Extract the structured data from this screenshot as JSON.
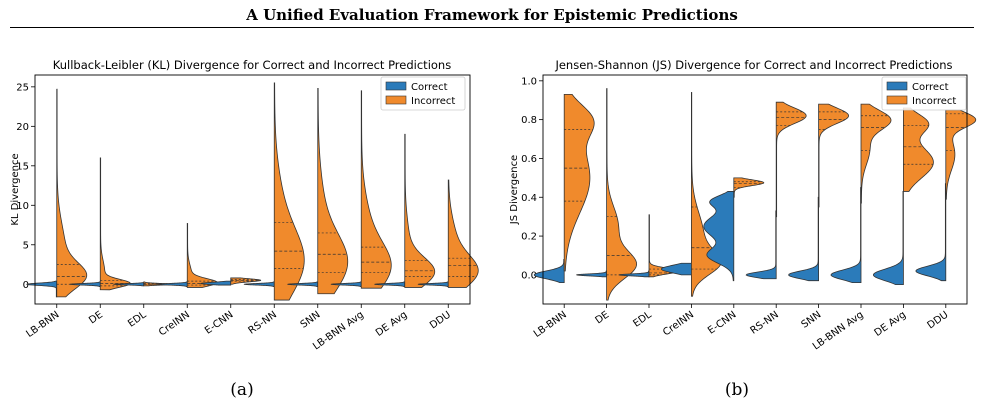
{
  "header": {
    "title": "A Unified Evaluation Framework for Epistemic Predictions"
  },
  "captions": [
    "(a)",
    "(b)"
  ],
  "colors": {
    "correct": "#2b7bba",
    "incorrect": "#f08a2c"
  },
  "chart_data": [
    {
      "type": "violin",
      "title": "Kullback-Leibler (KL) Divergence for Correct and Incorrect Predictions",
      "ylabel": "KL Divergence",
      "xlabel": "",
      "ylim": [
        -2.5,
        26.5
      ],
      "yticks": [
        0,
        5,
        10,
        15,
        20,
        25
      ],
      "legend": {
        "placement": "top-right",
        "entries": [
          "Correct",
          "Incorrect"
        ]
      },
      "categories": [
        "LB-BNN",
        "DE",
        "EDL",
        "CreINN",
        "E-CNN",
        "RS-NN",
        "SNN",
        "LB-BNN Avg",
        "DE Avg",
        "DDU"
      ],
      "series": [
        {
          "name": "Correct",
          "violins": [
            {
              "min": -1.6,
              "max": 0.4,
              "modes": [
                [
                  0,
                  0.15,
                  1
                ]
              ]
            },
            {
              "min": -0.3,
              "max": 0.3,
              "modes": [
                [
                  0,
                  0.1,
                  1
                ]
              ]
            },
            {
              "min": -0.2,
              "max": 0.2,
              "modes": [
                [
                  0,
                  0.08,
                  1
                ]
              ]
            },
            {
              "min": -0.3,
              "max": 0.3,
              "modes": [
                [
                  0,
                  0.1,
                  1
                ]
              ]
            },
            {
              "min": -0.1,
              "max": 0.4,
              "modes": [
                [
                  0.1,
                  0.15,
                  1
                ]
              ]
            },
            {
              "min": -0.3,
              "max": 0.3,
              "modes": [
                [
                  0,
                  0.1,
                  1
                ]
              ]
            },
            {
              "min": -0.3,
              "max": 0.3,
              "modes": [
                [
                  0,
                  0.1,
                  1
                ]
              ]
            },
            {
              "min": -0.3,
              "max": 0.3,
              "modes": [
                [
                  0,
                  0.1,
                  1
                ]
              ]
            },
            {
              "min": -0.3,
              "max": 0.3,
              "modes": [
                [
                  0,
                  0.1,
                  1
                ]
              ]
            },
            {
              "min": -0.3,
              "max": 0.3,
              "modes": [
                [
                  0,
                  0.1,
                  1
                ]
              ]
            }
          ]
        },
        {
          "name": "Incorrect",
          "violins": [
            {
              "min": -1.6,
              "max": 24.7,
              "modes": [
                [
                  1,
                  1.6,
                  1
                ],
                [
                  4,
                  3.5,
                  0.35
                ]
              ],
              "quartiles": [
                0.0,
                1.0,
                2.5
              ]
            },
            {
              "min": -0.7,
              "max": 16.0,
              "modes": [
                [
                  0.1,
                  0.5,
                  1
                ],
                [
                  1.5,
                  1.5,
                  0.15
                ]
              ],
              "quartiles": [
                -0.2,
                0.1,
                0.5
              ]
            },
            {
              "min": -0.2,
              "max": 0.3,
              "modes": [
                [
                  0,
                  0.1,
                  1
                ]
              ],
              "quartiles": [
                0.0,
                0.0,
                0.1
              ]
            },
            {
              "min": -0.4,
              "max": 7.7,
              "modes": [
                [
                  0.2,
                  0.5,
                  1
                ],
                [
                  1.2,
                  1.2,
                  0.15
                ]
              ],
              "quartiles": [
                -0.1,
                0.1,
                0.4
              ]
            },
            {
              "min": 0.0,
              "max": 0.8,
              "modes": [
                [
                  0.5,
                  0.2,
                  1
                ]
              ],
              "quartiles": [
                0.4,
                0.5,
                0.6
              ]
            },
            {
              "min": -2.0,
              "max": 25.5,
              "modes": [
                [
                  2.5,
                  4,
                  1
                ],
                [
                  9,
                  5,
                  0.3
                ]
              ],
              "quartiles": [
                2.0,
                4.2,
                7.8
              ]
            },
            {
              "min": -1.2,
              "max": 24.8,
              "modes": [
                [
                  2.5,
                  3.5,
                  1
                ],
                [
                  8,
                  5,
                  0.25
                ]
              ],
              "quartiles": [
                1.5,
                3.8,
                6.5
              ]
            },
            {
              "min": -0.5,
              "max": 24.5,
              "modes": [
                [
                  2,
                  3,
                  1
                ],
                [
                  7,
                  4,
                  0.3
                ]
              ],
              "quartiles": [
                1.5,
                2.8,
                4.7
              ]
            },
            {
              "min": -0.4,
              "max": 19.0,
              "modes": [
                [
                  1.5,
                  1.8,
                  1
                ],
                [
                  5,
                  3,
                  0.15
                ]
              ],
              "quartiles": [
                1.0,
                1.7,
                3.0
              ]
            },
            {
              "min": -0.4,
              "max": 13.2,
              "modes": [
                [
                  1.5,
                  2,
                  1
                ],
                [
                  5,
                  3,
                  0.3
                ]
              ],
              "quartiles": [
                1.0,
                2.4,
                3.3
              ]
            }
          ]
        }
      ]
    },
    {
      "type": "violin",
      "title": "Jensen-Shannon (JS) Divergence for Correct and Incorrect Predictions",
      "ylabel": "JS Divergence",
      "xlabel": "",
      "ylim": [
        -0.15,
        1.03
      ],
      "yticks": [
        0.0,
        0.2,
        0.4,
        0.6,
        0.8,
        1.0
      ],
      "legend": {
        "placement": "top-right",
        "entries": [
          "Correct",
          "Incorrect"
        ]
      },
      "categories": [
        "LB-BNN",
        "DE",
        "EDL",
        "CreINN",
        "E-CNN",
        "RS-NN",
        "SNN",
        "LB-BNN Avg",
        "DE Avg",
        "DDU"
      ],
      "series": [
        {
          "name": "Correct",
          "violins": [
            {
              "min": -0.04,
              "max": 0.08,
              "modes": [
                [
                  0,
                  0.02,
                  1
                ]
              ]
            },
            {
              "min": -0.01,
              "max": 0.02,
              "modes": [
                [
                  0,
                  0.005,
                  1
                ]
              ]
            },
            {
              "min": -0.01,
              "max": 0.02,
              "modes": [
                [
                  0,
                  0.005,
                  1
                ]
              ]
            },
            {
              "min": 0.0,
              "max": 0.06,
              "modes": [
                [
                  0.03,
                  0.02,
                  1
                ]
              ]
            },
            {
              "min": -0.03,
              "max": 0.43,
              "modes": [
                [
                  0.25,
                  0.06,
                  1
                ],
                [
                  0.1,
                  0.04,
                  0.85
                ],
                [
                  0.38,
                  0.03,
                  0.7
                ]
              ]
            },
            {
              "min": -0.02,
              "max": 0.33,
              "modes": [
                [
                  0,
                  0.015,
                  1
                ]
              ]
            },
            {
              "min": -0.03,
              "max": 0.4,
              "modes": [
                [
                  0,
                  0.02,
                  1
                ]
              ]
            },
            {
              "min": -0.04,
              "max": 0.45,
              "modes": [
                [
                  0,
                  0.025,
                  1
                ]
              ]
            },
            {
              "min": -0.05,
              "max": 0.43,
              "modes": [
                [
                  0,
                  0.03,
                  1
                ]
              ]
            },
            {
              "min": -0.03,
              "max": 0.47,
              "modes": [
                [
                  0.02,
                  0.025,
                  1
                ]
              ]
            }
          ]
        },
        {
          "name": "Incorrect",
          "violins": [
            {
              "min": 0.02,
              "max": 0.93,
              "modes": [
                [
                  0.5,
                  0.18,
                  1
                ],
                [
                  0.8,
                  0.08,
                  0.9
                ]
              ],
              "quartiles": [
                0.38,
                0.55,
                0.75
              ]
            },
            {
              "min": -0.13,
              "max": 0.96,
              "modes": [
                [
                  0.05,
                  0.07,
                  1
                ],
                [
                  0.25,
                  0.1,
                  0.4
                ]
              ],
              "quartiles": [
                0.0,
                0.1,
                0.3
              ]
            },
            {
              "min": -0.01,
              "max": 0.31,
              "modes": [
                [
                  0.02,
                  0.015,
                  1
                ]
              ],
              "quartiles": [
                0.0,
                0.01,
                0.03
              ]
            },
            {
              "min": -0.11,
              "max": 0.94,
              "modes": [
                [
                  0.06,
                  0.06,
                  1
                ],
                [
                  0.2,
                  0.12,
                  0.5
                ]
              ],
              "quartiles": [
                0.03,
                0.14,
                0.35
              ]
            },
            {
              "min": 0.4,
              "max": 0.5,
              "modes": [
                [
                  0.475,
                  0.015,
                  1
                ]
              ],
              "quartiles": [
                0.45,
                0.47,
                0.48
              ]
            },
            {
              "min": 0.3,
              "max": 0.89,
              "modes": [
                [
                  0.82,
                  0.04,
                  1
                ]
              ],
              "quartiles": [
                0.77,
                0.81,
                0.84
              ]
            },
            {
              "min": 0.35,
              "max": 0.88,
              "modes": [
                [
                  0.82,
                  0.04,
                  1
                ]
              ],
              "quartiles": [
                0.75,
                0.8,
                0.84
              ]
            },
            {
              "min": 0.37,
              "max": 0.88,
              "modes": [
                [
                  0.8,
                  0.05,
                  1
                ],
                [
                  0.65,
                  0.08,
                  0.3
                ]
              ],
              "quartiles": [
                0.64,
                0.76,
                0.82
              ]
            },
            {
              "min": 0.43,
              "max": 0.86,
              "modes": [
                [
                  0.58,
                  0.08,
                  1
                ],
                [
                  0.78,
                  0.05,
                  0.8
                ]
              ],
              "quartiles": [
                0.57,
                0.66,
                0.77
              ]
            },
            {
              "min": 0.39,
              "max": 0.85,
              "modes": [
                [
                  0.8,
                  0.04,
                  1
                ],
                [
                  0.62,
                  0.08,
                  0.3
                ]
              ],
              "quartiles": [
                0.64,
                0.76,
                0.83
              ]
            }
          ]
        }
      ]
    }
  ]
}
